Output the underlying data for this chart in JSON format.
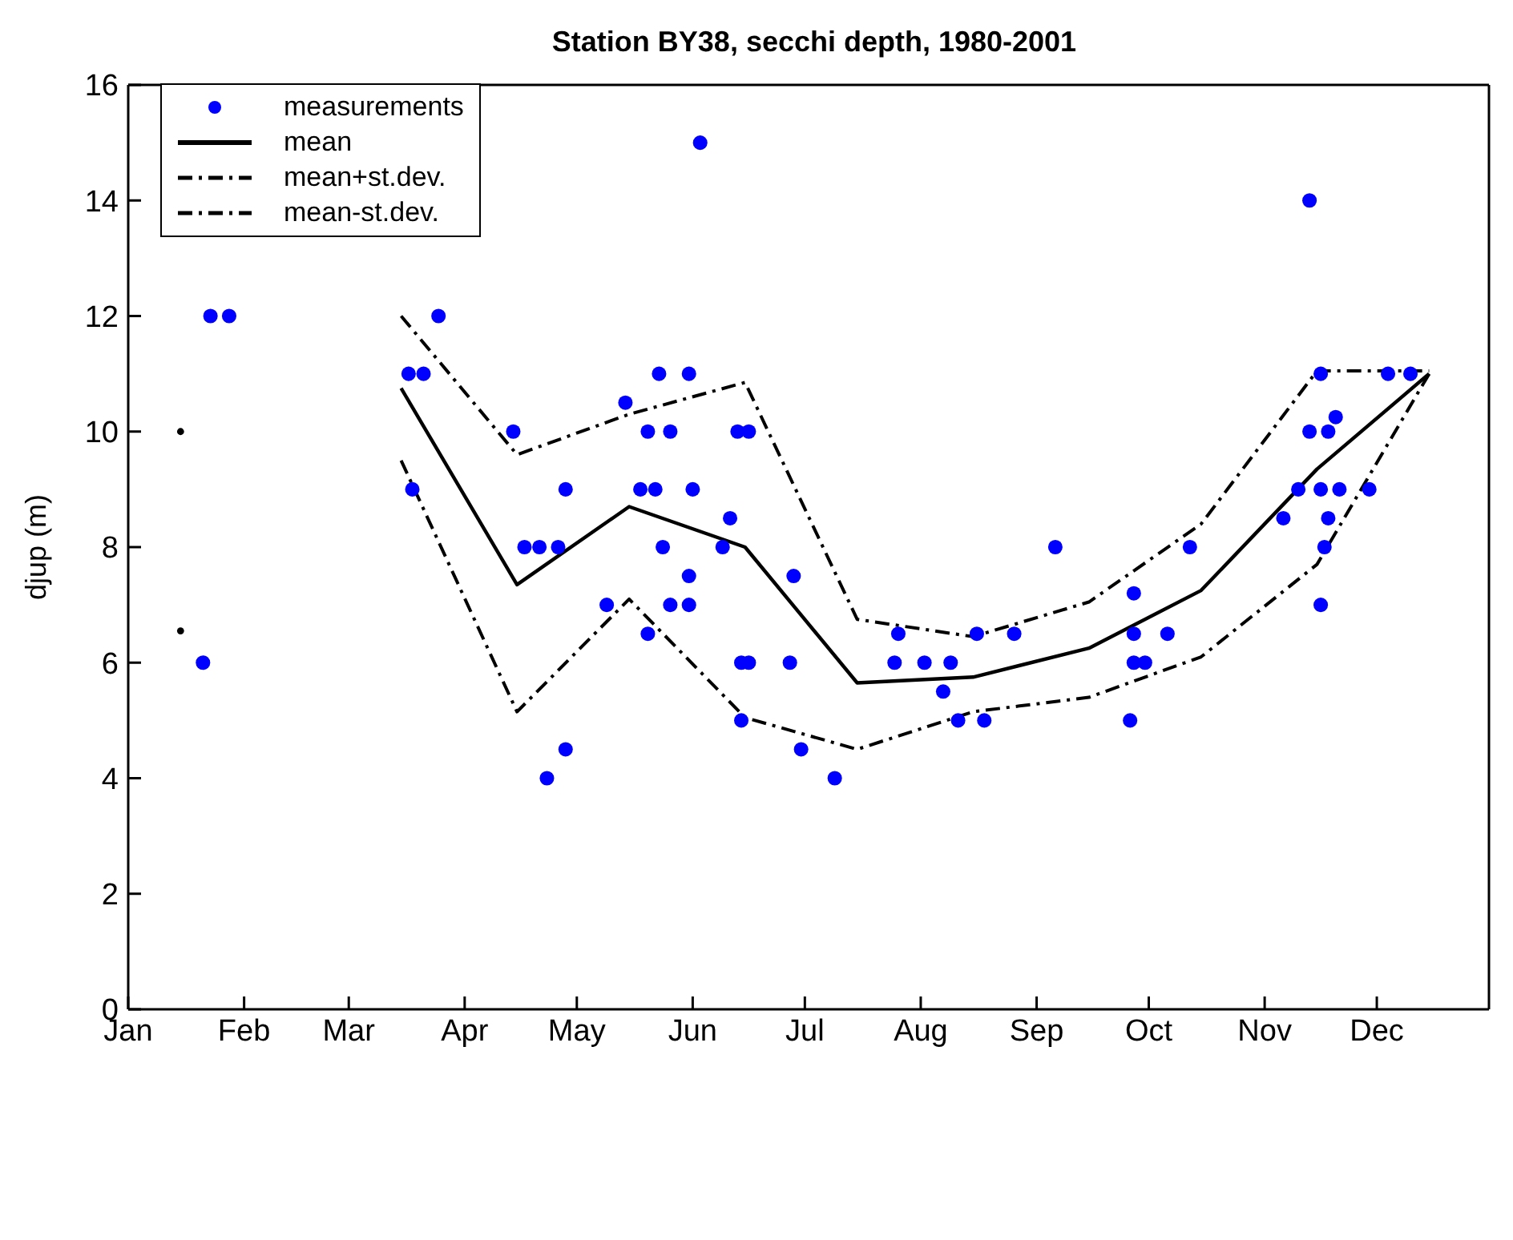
{
  "chart_data": {
    "type": "scatter",
    "title": "Station BY38, secchi depth, 1980-2001",
    "ylabel": "djup (m)",
    "xlim": [
      "--01-01",
      "--12-31"
    ],
    "xticks": [
      {
        "value": "--01-01",
        "label": "Jan"
      },
      {
        "value": "--02-01",
        "label": "Feb"
      },
      {
        "value": "--03-01",
        "label": "Mar"
      },
      {
        "value": "--04-01",
        "label": "Apr"
      },
      {
        "value": "--05-01",
        "label": "May"
      },
      {
        "value": "--06-01",
        "label": "Jun"
      },
      {
        "value": "--07-01",
        "label": "Jul"
      },
      {
        "value": "--08-01",
        "label": "Aug"
      },
      {
        "value": "--09-01",
        "label": "Sep"
      },
      {
        "value": "--10-01",
        "label": "Oct"
      },
      {
        "value": "--11-01",
        "label": "Nov"
      },
      {
        "value": "--12-01",
        "label": "Dec"
      }
    ],
    "ylim": [
      0,
      16
    ],
    "yticks": [
      0,
      2,
      4,
      6,
      8,
      10,
      12,
      14,
      16
    ],
    "grid": false,
    "legend": "top left",
    "series": [
      {
        "name": "measurements",
        "marker": "circle",
        "color": "#0000ff",
        "x": [
          "--01-23",
          "--01-28",
          "--03-25",
          "--03-17",
          "--03-21",
          "--04-14",
          "--03-18",
          "--04-28",
          "--04-17",
          "--04-21",
          "--04-26",
          "--01-21",
          "--04-28",
          "--04-23",
          "--06-03",
          "--05-23",
          "--05-31",
          "--05-14",
          "--05-20",
          "--05-26",
          "--06-13",
          "--06-16",
          "--05-18",
          "--05-22",
          "--06-01",
          "--06-11",
          "--05-24",
          "--06-09",
          "--09-06",
          "--05-31",
          "--06-28",
          "--05-09",
          "--05-26",
          "--05-31",
          "--05-20",
          "--07-26",
          "--08-16",
          "--08-26",
          "--06-14",
          "--06-16",
          "--06-27",
          "--07-25",
          "--08-02",
          "--08-09",
          "--08-07",
          "--06-14",
          "--08-11",
          "--08-18",
          "--06-30",
          "--07-09",
          "--11-13",
          "--11-16",
          "--12-04",
          "--12-10",
          "--11-20",
          "--11-13",
          "--11-18",
          "--11-10",
          "--11-16",
          "--11-21",
          "--11-29",
          "--11-06",
          "--11-18",
          "--10-12",
          "--11-17",
          "--09-27",
          "--11-16",
          "--09-27",
          "--10-06",
          "--09-27",
          "--09-30",
          "--09-26"
        ],
        "values": [
          12,
          12,
          12,
          11,
          11,
          10,
          9,
          9,
          8,
          8,
          8,
          6,
          4.5,
          4,
          15,
          11,
          11,
          10.5,
          10,
          10,
          10,
          10,
          9,
          9,
          9,
          8.5,
          8,
          8,
          8,
          7.5,
          7.5,
          7,
          7,
          7,
          6.5,
          6.5,
          6.5,
          6.5,
          6,
          6,
          6,
          6,
          6,
          6,
          5.5,
          5,
          5,
          5,
          4.5,
          4,
          14,
          11,
          11,
          11,
          10.25,
          10,
          10,
          9,
          9,
          9,
          9,
          8.5,
          8.5,
          8,
          8,
          7.2,
          7,
          6.5,
          6.5,
          6,
          6,
          5
        ]
      },
      {
        "name": "mean",
        "type": "line",
        "marker": "none",
        "line_style": "solid",
        "color": "#000000",
        "x": [
          "--03-15",
          "--04-15",
          "--05-15",
          "--06-15",
          "--07-15",
          "--08-15",
          "--09-15",
          "--10-15",
          "--11-15",
          "--12-15"
        ],
        "values": [
          10.75,
          7.35,
          8.7,
          8.0,
          5.65,
          5.75,
          6.25,
          7.25,
          9.35,
          11.0
        ]
      },
      {
        "name": "mean+st.dev.",
        "type": "line",
        "marker": "none",
        "line_style": "dashed",
        "color": "#000000",
        "x": [
          "--01-15",
          "--02-15",
          "--03-15",
          "--04-15",
          "--05-15",
          "--06-15",
          "--07-15",
          "--08-15",
          "--09-15",
          "--10-15",
          "--11-15",
          "--12-15"
        ],
        "values": [
          10.0,
          null,
          12.0,
          9.6,
          10.3,
          10.85,
          6.75,
          6.45,
          7.05,
          8.4,
          11.05,
          11.05
        ]
      },
      {
        "name": "mean-st.dev.",
        "type": "line",
        "marker": "none",
        "line_style": "dashed",
        "color": "#000000",
        "x": [
          "--01-15",
          "--02-15",
          "--03-15",
          "--04-15",
          "--05-15",
          "--06-15",
          "--07-15",
          "--08-15",
          "--09-15",
          "--10-15",
          "--11-15",
          "--12-15"
        ],
        "values": [
          6.55,
          null,
          9.5,
          5.15,
          7.1,
          5.05,
          4.5,
          5.15,
          5.4,
          6.1,
          7.7,
          11.0
        ]
      }
    ]
  }
}
